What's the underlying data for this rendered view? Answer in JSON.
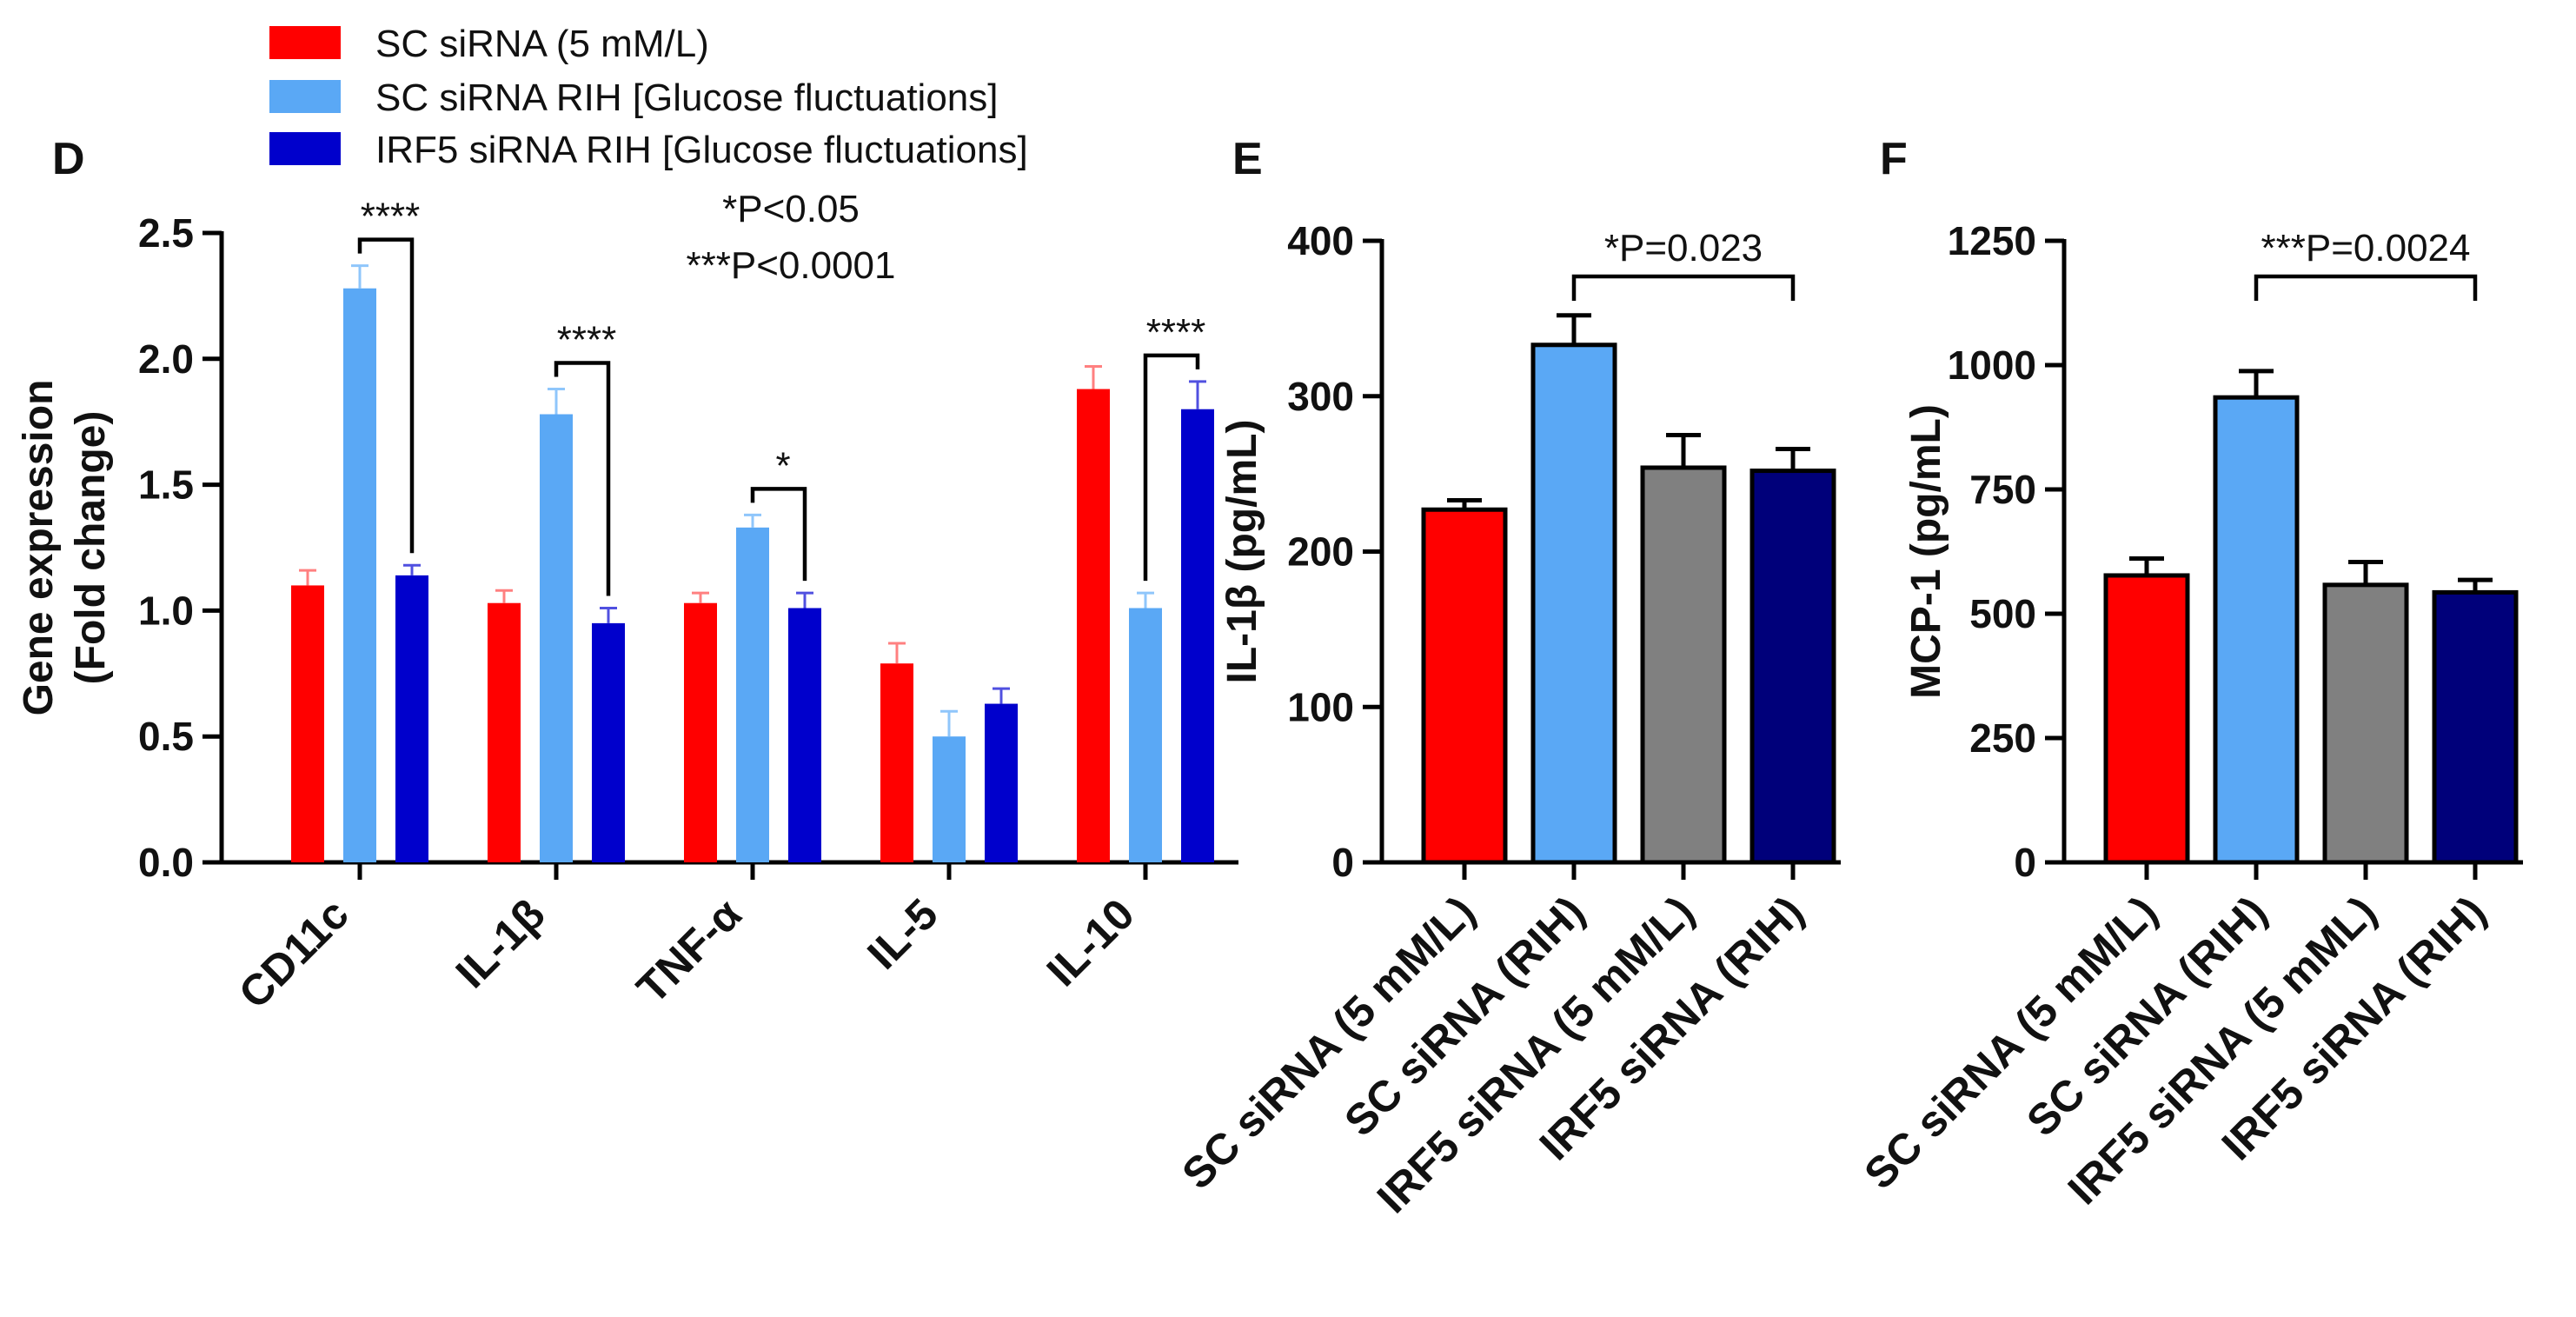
{
  "legend": [
    {
      "label": "SC siRNA (5 mM/L)",
      "color": "#ff0000"
    },
    {
      "label": "SC siRNA RIH [Glucose fluctuations]",
      "color": "#5aa8f5"
    },
    {
      "label": "IRF5 siRNA RIH [Glucose fluctuations]",
      "color": "#0000cc"
    }
  ],
  "chart_data": [
    {
      "panel": "D",
      "type": "bar",
      "title": "",
      "xlabel": "",
      "ylabel_line1": "Gene expression",
      "ylabel_line2": "(Fold change)",
      "ylim": [
        0,
        2.5
      ],
      "yticks": [
        "0.0",
        "0.5",
        "1.0",
        "1.5",
        "2.0",
        "2.5"
      ],
      "ytick_values": [
        0,
        0.5,
        1.0,
        1.5,
        2.0,
        2.5
      ],
      "categories": [
        "CD11c",
        "IL-1β",
        "TNF-α",
        "IL-5",
        "IL-10"
      ],
      "series": [
        {
          "name": "SC siRNA (5 mM/L)",
          "color": "#ff0000",
          "values": [
            1.1,
            1.03,
            1.03,
            0.79,
            1.88
          ],
          "errors": [
            0.06,
            0.05,
            0.04,
            0.08,
            0.09
          ]
        },
        {
          "name": "SC siRNA RIH [Glucose fluctuations]",
          "color": "#5aa8f5",
          "values": [
            2.28,
            1.78,
            1.33,
            0.5,
            1.01
          ],
          "errors": [
            0.09,
            0.1,
            0.05,
            0.1,
            0.06
          ]
        },
        {
          "name": "IRF5 siRNA RIH [Glucose fluctuations]",
          "color": "#0000cc",
          "values": [
            1.14,
            0.95,
            1.01,
            0.63,
            1.8
          ],
          "errors": [
            0.04,
            0.06,
            0.06,
            0.06,
            0.11
          ]
        }
      ],
      "annotations": [
        "*P<0.05",
        "***P<0.0001"
      ],
      "significance": [
        {
          "category": 0,
          "from": 1,
          "to": 2,
          "label": "****"
        },
        {
          "category": 1,
          "from": 1,
          "to": 2,
          "label": "****"
        },
        {
          "category": 2,
          "from": 1,
          "to": 2,
          "label": "*"
        },
        {
          "category": 4,
          "from": 1,
          "to": 2,
          "label": "****"
        }
      ]
    },
    {
      "panel": "E",
      "type": "bar",
      "title": "",
      "xlabel": "",
      "ylabel": "IL-1β (pg/mL)",
      "ylim": [
        0,
        400
      ],
      "yticks": [
        "0",
        "100",
        "200",
        "300",
        "400"
      ],
      "ytick_values": [
        0,
        100,
        200,
        300,
        400
      ],
      "categories": [
        "SC siRNA (5 mM/L)",
        "SC siRNA (RIH)",
        "IRF5 siRNA (5 mM/L)",
        "IRF5 siRNA (RIH)"
      ],
      "values": [
        227,
        333,
        254,
        252
      ],
      "errors": [
        6,
        19,
        21,
        14
      ],
      "colors": [
        "#ff0000",
        "#5aa8f5",
        "#808080",
        "#00007a"
      ],
      "significance": [
        {
          "from": 1,
          "to": 3,
          "label": "*P=0.023"
        }
      ]
    },
    {
      "panel": "F",
      "type": "bar",
      "title": "",
      "xlabel": "",
      "ylabel": "MCP-1 (pg/mL)",
      "ylim": [
        0,
        1250
      ],
      "yticks": [
        "0",
        "250",
        "500",
        "750",
        "1000",
        "1250"
      ],
      "ytick_values": [
        0,
        250,
        500,
        750,
        1000,
        1250
      ],
      "categories": [
        "SC siRNA (5 mM/L)",
        "SC siRNA (RIH)",
        "IRF5 siRNA (5 mML)",
        "IRF5 siRNA (RIH)"
      ],
      "values": [
        577,
        935,
        558,
        543
      ],
      "errors": [
        34,
        53,
        46,
        25
      ],
      "colors": [
        "#ff0000",
        "#5aa8f5",
        "#808080",
        "#00007a"
      ],
      "significance": [
        {
          "from": 1,
          "to": 3,
          "label": "***P=0.0024"
        }
      ]
    }
  ]
}
